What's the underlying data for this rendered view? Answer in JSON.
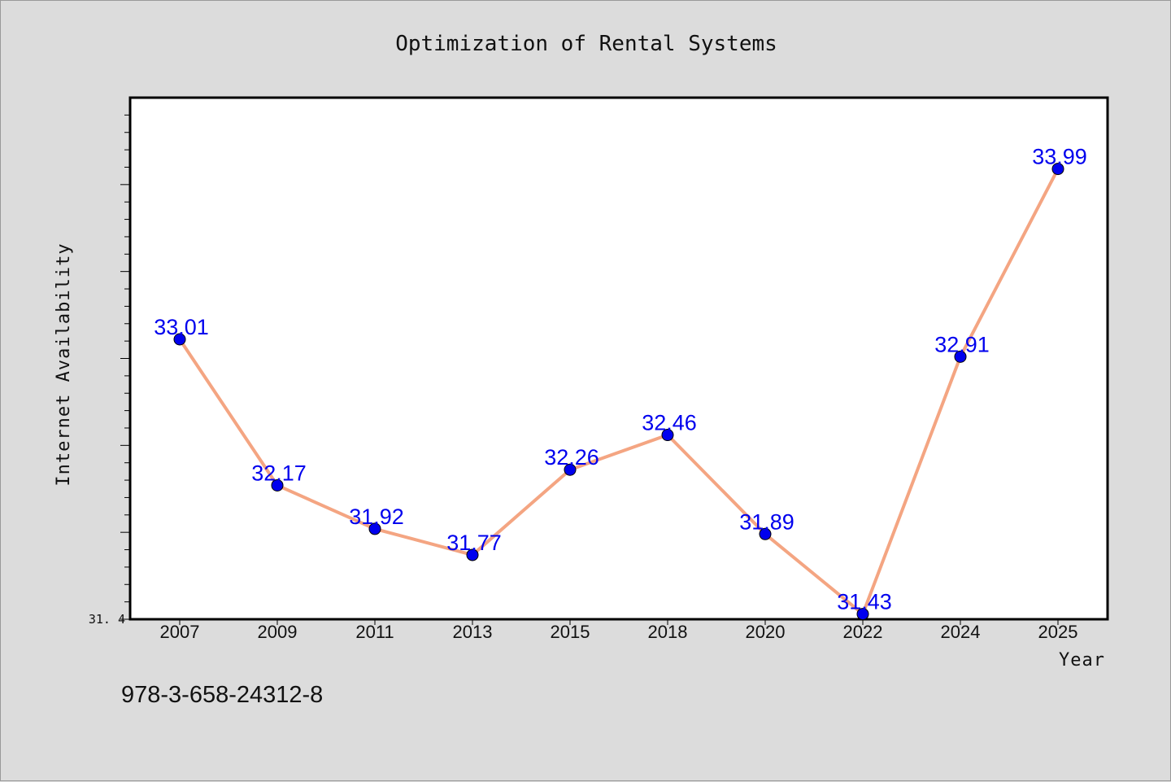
{
  "chart_data": {
    "type": "line",
    "title": "Optimization of Rental Systems",
    "xlabel": "Year",
    "ylabel": "Internet Availability",
    "categories": [
      "2007",
      "2009",
      "2011",
      "2013",
      "2015",
      "2018",
      "2020",
      "2022",
      "2024",
      "2025"
    ],
    "series": [
      {
        "values": [
          33.01,
          32.17,
          31.92,
          31.77,
          32.26,
          32.46,
          31.89,
          31.43,
          32.91,
          33.99
        ]
      }
    ],
    "ylim": [
      31.4,
      34.4
    ],
    "ytick_labels": [
      "31.4"
    ],
    "grid": false,
    "line_color": "#f4a582",
    "marker_color": "#0000ee",
    "label_color": "#0000ee"
  },
  "footer": {
    "isbn": "978-3-658-24312-8"
  }
}
